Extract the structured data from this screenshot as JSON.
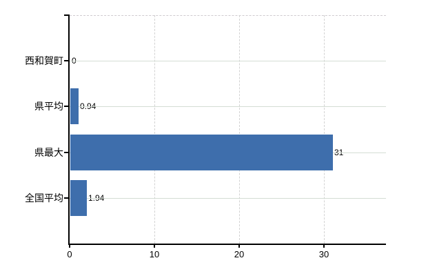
{
  "chart_data": {
    "type": "bar",
    "orientation": "horizontal",
    "title": "",
    "xlabel": "",
    "ylabel": "",
    "categories": [
      "西和賀町",
      "県平均",
      "県最大",
      "全国平均"
    ],
    "values": [
      0,
      0.94,
      31,
      1.94
    ],
    "value_labels": [
      "0",
      "0.94",
      "31",
      "1.94"
    ],
    "x_ticks": [
      0,
      10,
      20,
      30
    ],
    "x_tick_labels": [
      "0",
      "10",
      "20",
      "30"
    ],
    "xlim": [
      0,
      37.3
    ],
    "legend": null,
    "grid": {
      "vertical_style": "dashed",
      "horizontal_style": "solid",
      "top_border_style": "dashed"
    },
    "colors": {
      "bar": "#3e6eac",
      "axis": "#000000",
      "h_gridline": "#d4ddd4",
      "v_gridline": "#d2d2d2",
      "top_border": "#cfcbcf",
      "text": "#000000",
      "background": "#ffffff"
    }
  }
}
